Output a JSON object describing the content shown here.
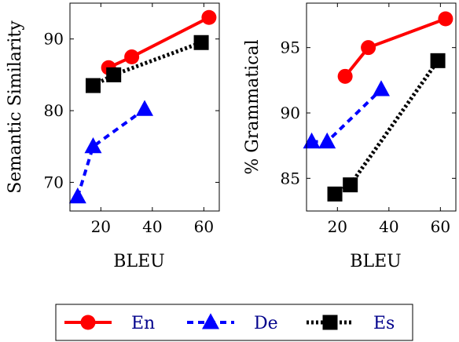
{
  "chart_data": [
    {
      "type": "line",
      "xlabel": "BLEU",
      "ylabel": "Semantic Similarity",
      "xticks": [
        20,
        40,
        60
      ],
      "yticks": [
        70,
        80,
        90
      ],
      "xlim": [
        8,
        66
      ],
      "ylim": [
        66,
        95
      ],
      "series": [
        {
          "name": "En",
          "x": [
            23,
            32,
            62
          ],
          "y": [
            86,
            87.5,
            93
          ]
        },
        {
          "name": "De",
          "x": [
            11,
            17,
            37
          ],
          "y": [
            68,
            75,
            80.2
          ]
        },
        {
          "name": "Es",
          "x": [
            17,
            25,
            59
          ],
          "y": [
            83.5,
            85,
            89.5
          ]
        }
      ]
    },
    {
      "type": "line",
      "xlabel": "BLEU",
      "ylabel": "% Grammatical",
      "xticks": [
        20,
        40,
        60
      ],
      "yticks": [
        85,
        90,
        95
      ],
      "xlim": [
        8,
        66
      ],
      "ylim": [
        82.5,
        98.4
      ],
      "series": [
        {
          "name": "En",
          "x": [
            23,
            32,
            62
          ],
          "y": [
            92.8,
            95,
            97.2
          ]
        },
        {
          "name": "De",
          "x": [
            10,
            16,
            37
          ],
          "y": [
            87.8,
            87.8,
            91.8
          ]
        },
        {
          "name": "Es",
          "x": [
            19,
            25,
            59
          ],
          "y": [
            83.8,
            84.5,
            94
          ]
        }
      ]
    }
  ],
  "legend": {
    "items": [
      {
        "label": "En",
        "color": "#ff0000",
        "marker": "circle",
        "line": "solid"
      },
      {
        "label": "De",
        "color": "#0000ff",
        "marker": "triangle",
        "line": "dashed"
      },
      {
        "label": "Es",
        "color": "#000000",
        "marker": "square",
        "line": "dotted"
      }
    ]
  }
}
